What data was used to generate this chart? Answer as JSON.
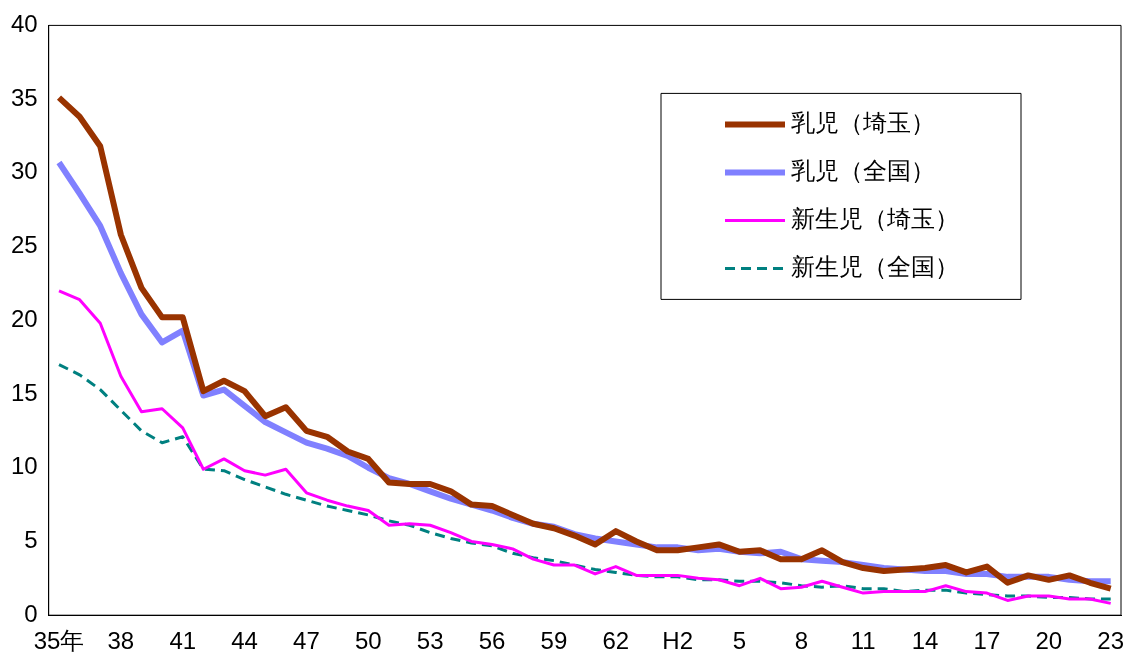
{
  "chart_data": {
    "type": "line",
    "categories": [
      "35年",
      null,
      null,
      "38",
      null,
      null,
      "41",
      null,
      null,
      "44",
      null,
      null,
      "47",
      null,
      null,
      "50",
      null,
      null,
      "53",
      null,
      null,
      "56",
      null,
      null,
      "59",
      null,
      null,
      "62",
      null,
      null,
      "H2",
      null,
      null,
      "5",
      null,
      null,
      "8",
      null,
      null,
      "11",
      null,
      null,
      "14",
      null,
      null,
      "17",
      null,
      null,
      "20",
      null,
      null,
      "23"
    ],
    "ylim": [
      0,
      40
    ],
    "yticks": [
      0,
      5,
      10,
      15,
      20,
      25,
      30,
      35,
      40
    ],
    "grid": false,
    "legend": "top right",
    "marker": "none",
    "series": [
      {
        "name": "乳児（埼玉）",
        "color": "#993300",
        "line_style": "solid",
        "values": [
          35.1,
          33.8,
          31.8,
          25.8,
          22.2,
          20.2,
          20.2,
          15.2,
          15.9,
          15.2,
          13.5,
          14.1,
          12.5,
          12.1,
          11.1,
          10.6,
          9.0,
          8.9,
          8.9,
          8.4,
          7.5,
          7.4,
          6.8,
          6.2,
          5.9,
          5.4,
          4.8,
          5.7,
          5.0,
          4.4,
          4.4,
          4.6,
          4.8,
          4.3,
          4.4,
          3.8,
          3.8,
          4.4,
          3.6,
          3.2,
          3.0,
          3.1,
          3.2,
          3.4,
          2.9,
          3.3,
          2.2,
          2.7,
          2.4,
          2.7,
          2.2,
          1.8
        ]
      },
      {
        "name": "乳児（全国）",
        "color": "#8080ff",
        "line_style": "solid",
        "values": [
          30.7,
          28.6,
          26.4,
          23.2,
          20.4,
          18.5,
          19.3,
          14.9,
          15.3,
          14.2,
          13.1,
          12.4,
          11.7,
          11.3,
          10.8,
          10.0,
          9.3,
          8.9,
          8.4,
          7.9,
          7.5,
          7.1,
          6.6,
          6.2,
          6.0,
          5.5,
          5.2,
          5.0,
          4.8,
          4.6,
          4.6,
          4.4,
          4.5,
          4.3,
          4.2,
          4.3,
          3.8,
          3.7,
          3.6,
          3.4,
          3.2,
          3.1,
          3.0,
          3.0,
          2.8,
          2.8,
          2.6,
          2.6,
          2.6,
          2.4,
          2.3,
          2.3
        ]
      },
      {
        "name": "新生児（埼玉）",
        "color": "#ff00ff",
        "line_style": "solid",
        "values": [
          22.0,
          21.4,
          19.8,
          16.2,
          13.8,
          14.0,
          12.7,
          9.9,
          10.6,
          9.8,
          9.5,
          9.9,
          8.3,
          7.8,
          7.4,
          7.1,
          6.1,
          6.2,
          6.1,
          5.6,
          5.0,
          4.8,
          4.5,
          3.8,
          3.4,
          3.4,
          2.8,
          3.3,
          2.7,
          2.7,
          2.7,
          2.5,
          2.4,
          2.0,
          2.5,
          1.8,
          1.9,
          2.3,
          1.9,
          1.5,
          1.6,
          1.6,
          1.6,
          2.0,
          1.6,
          1.5,
          1.0,
          1.3,
          1.3,
          1.1,
          1.1,
          0.8
        ]
      },
      {
        "name": "新生児（全国）",
        "color": "#008080",
        "line_style": "dashed",
        "values": [
          17.0,
          16.3,
          15.3,
          13.9,
          12.5,
          11.7,
          12.1,
          9.9,
          9.8,
          9.2,
          8.7,
          8.2,
          7.8,
          7.4,
          7.1,
          6.8,
          6.4,
          6.1,
          5.6,
          5.2,
          4.9,
          4.7,
          4.2,
          3.9,
          3.7,
          3.4,
          3.1,
          2.9,
          2.7,
          2.6,
          2.6,
          2.4,
          2.4,
          2.3,
          2.3,
          2.2,
          2.0,
          1.9,
          2.0,
          1.8,
          1.8,
          1.6,
          1.7,
          1.7,
          1.5,
          1.4,
          1.3,
          1.3,
          1.2,
          1.2,
          1.1,
          1.1
        ]
      }
    ]
  }
}
